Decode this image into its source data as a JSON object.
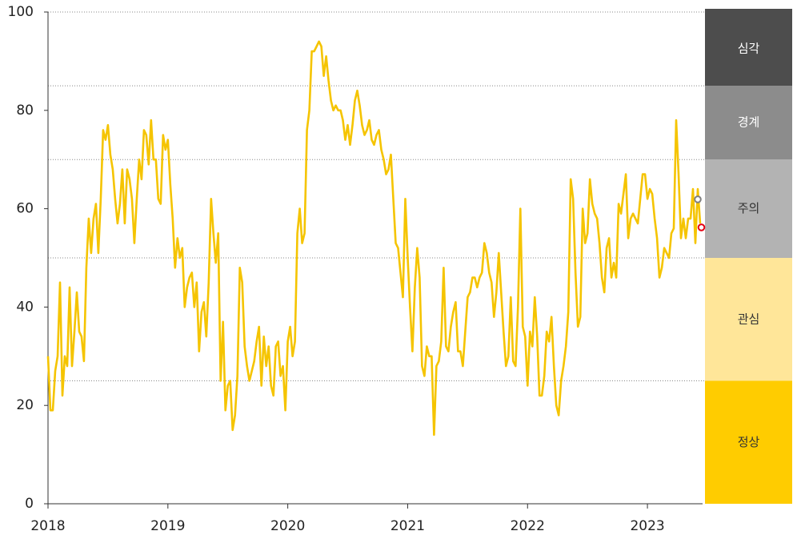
{
  "chart_data": {
    "type": "line",
    "x": [
      2018,
      2018.02,
      2018.04,
      2018.06,
      2018.08,
      2018.1,
      2018.12,
      2018.14,
      2018.16,
      2018.18,
      2018.2,
      2018.22,
      2018.24,
      2018.26,
      2018.28,
      2018.3,
      2018.32,
      2018.34,
      2018.36,
      2018.38,
      2018.4,
      2018.42,
      2018.44,
      2018.46,
      2018.48,
      2018.5,
      2018.52,
      2018.54,
      2018.56,
      2018.58,
      2018.6,
      2018.62,
      2018.64,
      2018.66,
      2018.68,
      2018.7,
      2018.72,
      2018.74,
      2018.76,
      2018.78,
      2018.8,
      2018.82,
      2018.84,
      2018.86,
      2018.88,
      2018.9,
      2018.92,
      2018.94,
      2018.96,
      2018.98,
      2019,
      2019.02,
      2019.04,
      2019.06,
      2019.08,
      2019.1,
      2019.12,
      2019.14,
      2019.16,
      2019.18,
      2019.2,
      2019.22,
      2019.24,
      2019.26,
      2019.28,
      2019.3,
      2019.32,
      2019.34,
      2019.36,
      2019.38,
      2019.4,
      2019.42,
      2019.44,
      2019.46,
      2019.48,
      2019.5,
      2019.52,
      2019.54,
      2019.56,
      2019.58,
      2019.6,
      2019.62,
      2019.64,
      2019.66,
      2019.68,
      2019.7,
      2019.72,
      2019.74,
      2019.76,
      2019.78,
      2019.8,
      2019.82,
      2019.84,
      2019.86,
      2019.88,
      2019.9,
      2019.92,
      2019.94,
      2019.96,
      2019.98,
      2020,
      2020.02,
      2020.04,
      2020.06,
      2020.08,
      2020.1,
      2020.12,
      2020.14,
      2020.16,
      2020.18,
      2020.2,
      2020.22,
      2020.24,
      2020.26,
      2020.28,
      2020.3,
      2020.32,
      2020.34,
      2020.36,
      2020.38,
      2020.4,
      2020.42,
      2020.44,
      2020.46,
      2020.48,
      2020.5,
      2020.52,
      2020.54,
      2020.56,
      2020.58,
      2020.6,
      2020.62,
      2020.64,
      2020.66,
      2020.68,
      2020.7,
      2020.72,
      2020.74,
      2020.76,
      2020.78,
      2020.8,
      2020.82,
      2020.84,
      2020.86,
      2020.88,
      2020.9,
      2020.92,
      2020.94,
      2020.96,
      2020.98,
      2021,
      2021.02,
      2021.04,
      2021.06,
      2021.08,
      2021.1,
      2021.12,
      2021.14,
      2021.16,
      2021.18,
      2021.2,
      2021.22,
      2021.24,
      2021.26,
      2021.28,
      2021.3,
      2021.32,
      2021.34,
      2021.36,
      2021.38,
      2021.4,
      2021.42,
      2021.44,
      2021.46,
      2021.48,
      2021.5,
      2021.52,
      2021.54,
      2021.56,
      2021.58,
      2021.6,
      2021.62,
      2021.64,
      2021.66,
      2021.68,
      2021.7,
      2021.72,
      2021.74,
      2021.76,
      2021.78,
      2021.8,
      2021.82,
      2021.84,
      2021.86,
      2021.88,
      2021.9,
      2021.92,
      2021.94,
      2021.96,
      2021.98,
      2022,
      2022.02,
      2022.04,
      2022.06,
      2022.08,
      2022.1,
      2022.12,
      2022.14,
      2022.16,
      2022.18,
      2022.2,
      2022.22,
      2022.24,
      2022.26,
      2022.28,
      2022.3,
      2022.32,
      2022.34,
      2022.36,
      2022.38,
      2022.4,
      2022.42,
      2022.44,
      2022.46,
      2022.48,
      2022.5,
      2022.52,
      2022.54,
      2022.56,
      2022.58,
      2022.6,
      2022.62,
      2022.64,
      2022.66,
      2022.68,
      2022.7,
      2022.72,
      2022.74,
      2022.76,
      2022.78,
      2022.8,
      2022.82,
      2022.84,
      2022.86,
      2022.88,
      2022.9,
      2022.92,
      2022.94,
      2022.96,
      2022.98,
      2023,
      2023.02,
      2023.04,
      2023.06,
      2023.08,
      2023.1,
      2023.12,
      2023.14,
      2023.16,
      2023.18,
      2023.2,
      2023.22,
      2023.24,
      2023.26,
      2023.28,
      2023.3,
      2023.32,
      2023.34,
      2023.36,
      2023.38,
      2023.4,
      2023.42,
      2023.44
    ],
    "series": [
      {
        "color": "#f5c400",
        "values": [
          30,
          19,
          19,
          27,
          30,
          45,
          22,
          30,
          28,
          44,
          28,
          35,
          43,
          35,
          34,
          29,
          48,
          58,
          51,
          58,
          61,
          51,
          62,
          76,
          74,
          77,
          71,
          68,
          62,
          57,
          61,
          68,
          57,
          68,
          66,
          62,
          53,
          62,
          70,
          66,
          76,
          75,
          69,
          78,
          70,
          70,
          62,
          61,
          75,
          72,
          74,
          65,
          58,
          48,
          54,
          50,
          52,
          40,
          44,
          46,
          47,
          40,
          45,
          31,
          39,
          41,
          34,
          45,
          62,
          55,
          49,
          55,
          25,
          37,
          19,
          24,
          25,
          15,
          18,
          26,
          48,
          45,
          32,
          28,
          25,
          27,
          29,
          33,
          36,
          24,
          34,
          28,
          32,
          24,
          22,
          32,
          33,
          26,
          28,
          19,
          33,
          36,
          30,
          33,
          55,
          60,
          53,
          55,
          76,
          80,
          92,
          92,
          93,
          94,
          93,
          87,
          91,
          86,
          82,
          80,
          81,
          80,
          80,
          78,
          74,
          77,
          73,
          77,
          82,
          84,
          81,
          77,
          75,
          76,
          78,
          74,
          73,
          75,
          76,
          72,
          70,
          67,
          68,
          71,
          62,
          53,
          52,
          47,
          42,
          62,
          50,
          40,
          31,
          44,
          52,
          46,
          28,
          26,
          32,
          30,
          30,
          14,
          28,
          29,
          33,
          48,
          32,
          31,
          36,
          39,
          41,
          31,
          31,
          28,
          35,
          42,
          43,
          46,
          46,
          44,
          46,
          47,
          53,
          51,
          47,
          45,
          38,
          43,
          51,
          43,
          35,
          28,
          30,
          42,
          29,
          28,
          40,
          60,
          36,
          34,
          24,
          35,
          32,
          42,
          34,
          22,
          22,
          26,
          35,
          33,
          38,
          28,
          20,
          18,
          25,
          28,
          32,
          39,
          66,
          62,
          47,
          36,
          38,
          60,
          53,
          55,
          66,
          61,
          59,
          58,
          53,
          46,
          43,
          52,
          54,
          46,
          49,
          46,
          61,
          59,
          63,
          67,
          54,
          58,
          59,
          58,
          57,
          62,
          67,
          67,
          62,
          64,
          63,
          58,
          54,
          46,
          48,
          52,
          51,
          50,
          55,
          56,
          78,
          67,
          54,
          58,
          54,
          58,
          58,
          64,
          53,
          64,
          57
        ]
      }
    ],
    "markers": [
      {
        "x": 2023.42,
        "value": 61.9,
        "color": "#808080"
      },
      {
        "x": 2023.45,
        "value": 56.2,
        "color": "#e60012"
      }
    ],
    "zones": [
      {
        "label": "정상",
        "from": 0,
        "to": 25,
        "color": "#ffcc00",
        "text_color": "#333333"
      },
      {
        "label": "관심",
        "from": 25,
        "to": 50,
        "color": "#ffe699",
        "text_color": "#333333"
      },
      {
        "label": "주의",
        "from": 50,
        "to": 70,
        "color": "#b3b3b3",
        "text_color": "#333333"
      },
      {
        "label": "경계",
        "from": 70,
        "to": 85,
        "color": "#8c8c8c",
        "text_color": "#ffffff"
      },
      {
        "label": "심각",
        "from": 85,
        "to": 100,
        "color": "#4d4d4d",
        "text_color": "#ffffff"
      }
    ],
    "xlim": [
      2018,
      2023.46
    ],
    "xticks": [
      2018,
      2019,
      2020,
      2021,
      2022,
      2023
    ],
    "ylim": [
      0,
      100
    ],
    "yticks": [
      0,
      20,
      40,
      60,
      80,
      100
    ],
    "grid": true
  }
}
